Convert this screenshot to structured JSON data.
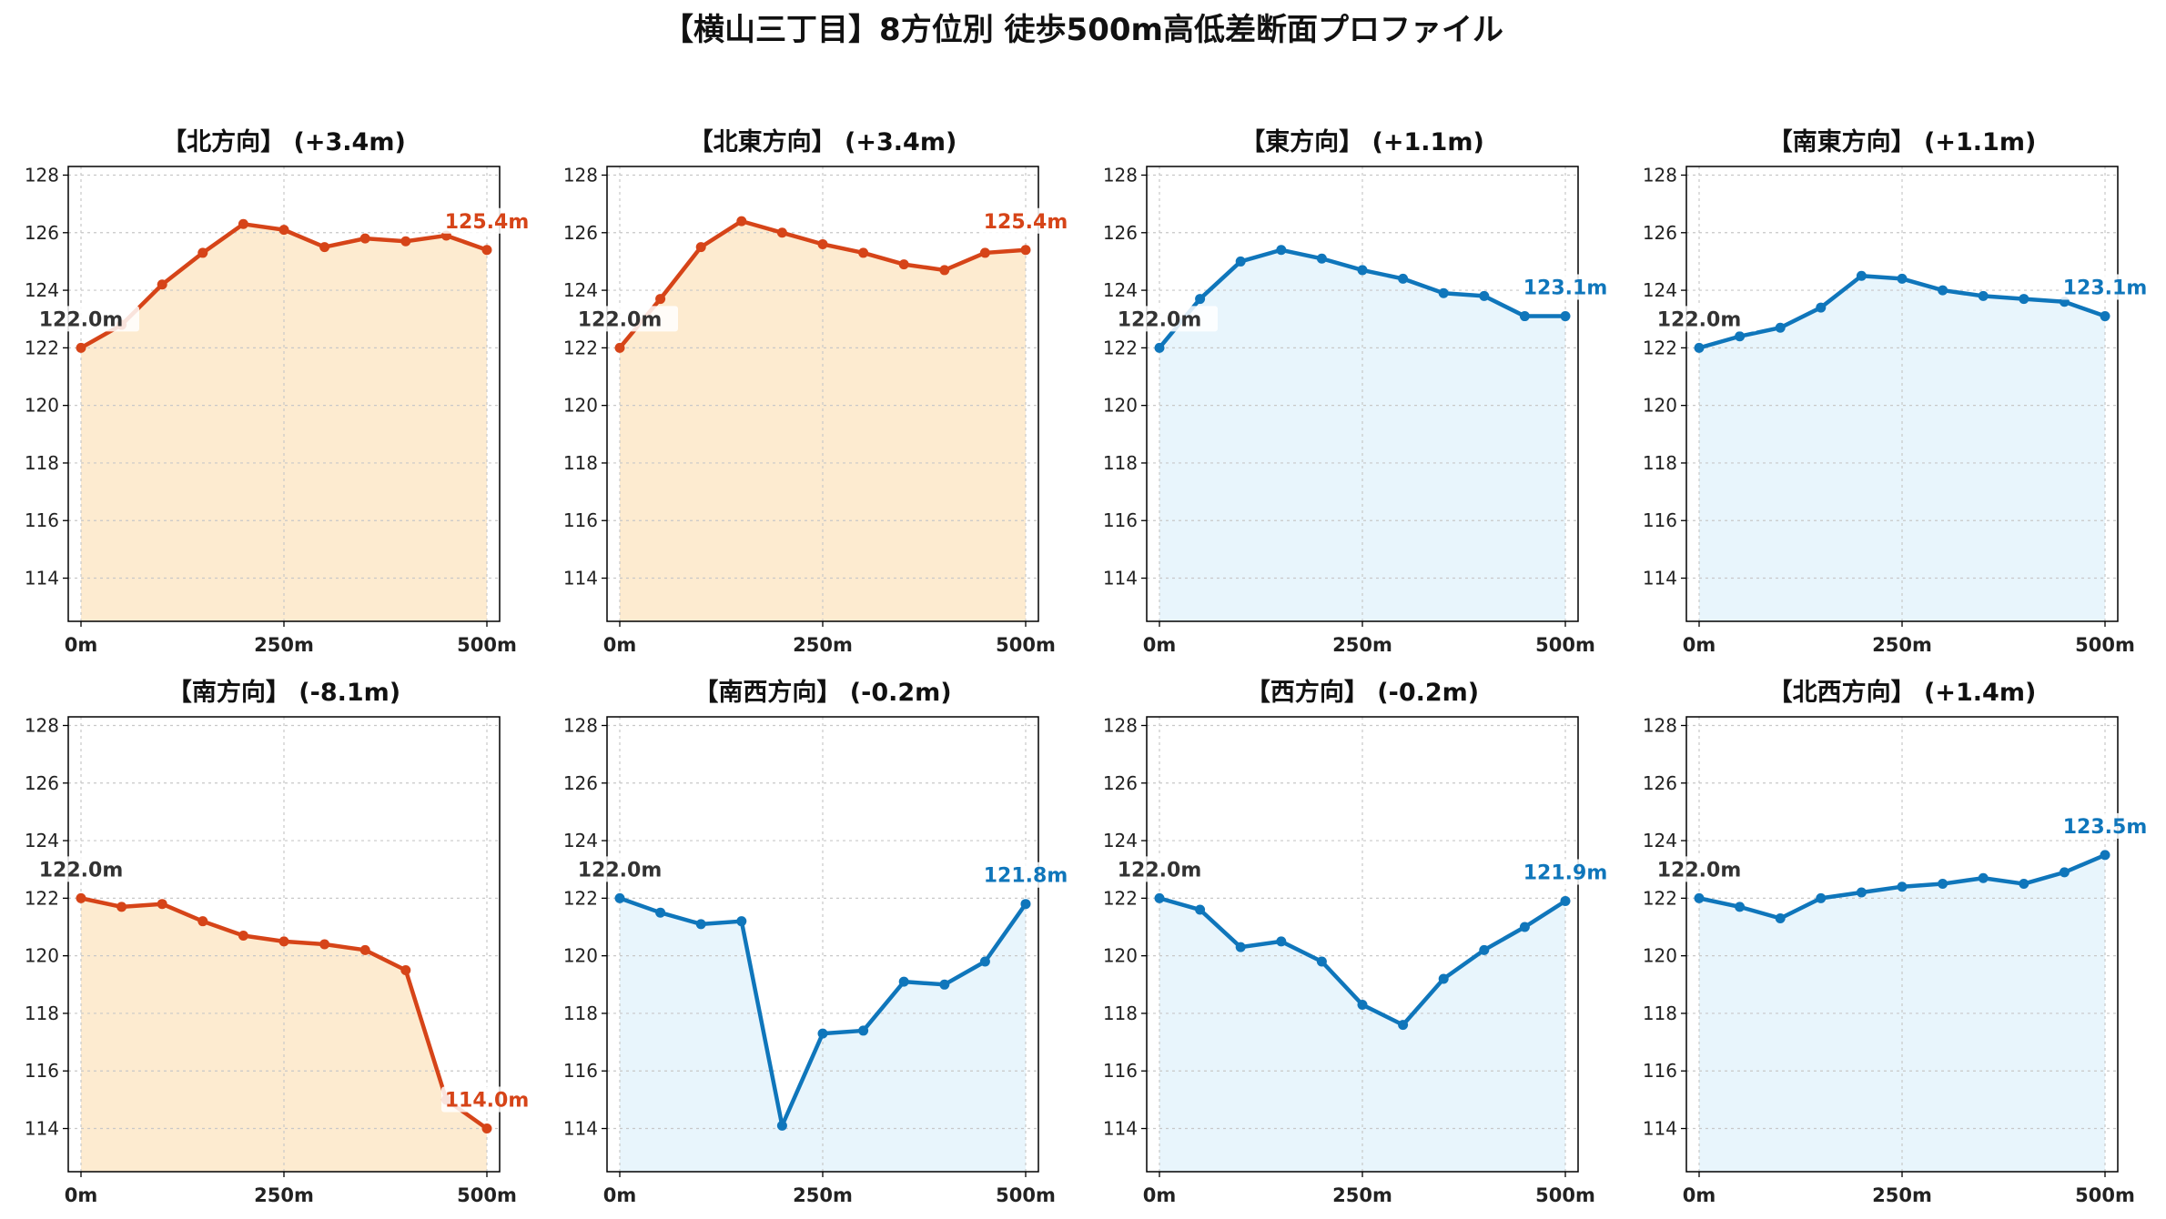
{
  "title": "【横山三丁目】8方位別 徒歩500m高低差断面プロファイル",
  "colors": {
    "up_line": "#d64418",
    "up_fill": "#fdebd0",
    "down_line": "#0f76bb",
    "down_fill": "#e8f5fc"
  },
  "chart_data": [
    {
      "type": "area",
      "title": "【北方向】 (+3.4m)",
      "trend": "up",
      "x": [
        0,
        50,
        100,
        150,
        200,
        250,
        300,
        350,
        400,
        450,
        500
      ],
      "values": [
        122.0,
        122.8,
        124.2,
        125.3,
        126.3,
        126.1,
        125.5,
        125.8,
        125.7,
        125.9,
        125.4
      ],
      "xticks": [
        "0m",
        "250m",
        "500m"
      ],
      "ylim": [
        112.5,
        128.3
      ],
      "yticks": [
        114,
        116,
        118,
        120,
        122,
        124,
        126,
        128
      ],
      "start_label": "122.0m",
      "end_label": "125.4m",
      "grid": true
    },
    {
      "type": "area",
      "title": "【北東方向】 (+3.4m)",
      "trend": "up",
      "x": [
        0,
        50,
        100,
        150,
        200,
        250,
        300,
        350,
        400,
        450,
        500
      ],
      "values": [
        122.0,
        123.7,
        125.5,
        126.4,
        126.0,
        125.6,
        125.3,
        124.9,
        124.7,
        125.3,
        125.4
      ],
      "xticks": [
        "0m",
        "250m",
        "500m"
      ],
      "ylim": [
        112.5,
        128.3
      ],
      "yticks": [
        114,
        116,
        118,
        120,
        122,
        124,
        126,
        128
      ],
      "start_label": "122.0m",
      "end_label": "125.4m",
      "grid": true
    },
    {
      "type": "area",
      "title": "【東方向】 (+1.1m)",
      "trend": "down",
      "x": [
        0,
        50,
        100,
        150,
        200,
        250,
        300,
        350,
        400,
        450,
        500
      ],
      "values": [
        122.0,
        123.7,
        125.0,
        125.4,
        125.1,
        124.7,
        124.4,
        123.9,
        123.8,
        123.1,
        123.1
      ],
      "xticks": [
        "0m",
        "250m",
        "500m"
      ],
      "ylim": [
        112.5,
        128.3
      ],
      "yticks": [
        114,
        116,
        118,
        120,
        122,
        124,
        126,
        128
      ],
      "start_label": "122.0m",
      "end_label": "123.1m",
      "grid": true
    },
    {
      "type": "area",
      "title": "【南東方向】 (+1.1m)",
      "trend": "down",
      "x": [
        0,
        50,
        100,
        150,
        200,
        250,
        300,
        350,
        400,
        450,
        500
      ],
      "values": [
        122.0,
        122.4,
        122.7,
        123.4,
        124.5,
        124.4,
        124.0,
        123.8,
        123.7,
        123.6,
        123.1
      ],
      "xticks": [
        "0m",
        "250m",
        "500m"
      ],
      "ylim": [
        112.5,
        128.3
      ],
      "yticks": [
        114,
        116,
        118,
        120,
        122,
        124,
        126,
        128
      ],
      "start_label": "122.0m",
      "end_label": "123.1m",
      "grid": true
    },
    {
      "type": "area",
      "title": "【南方向】 (-8.1m)",
      "trend": "up",
      "x": [
        0,
        50,
        100,
        150,
        200,
        250,
        300,
        350,
        400,
        450,
        500
      ],
      "values": [
        122.0,
        121.7,
        121.8,
        121.2,
        120.7,
        120.5,
        120.4,
        120.2,
        119.5,
        115.0,
        114.0
      ],
      "xticks": [
        "0m",
        "250m",
        "500m"
      ],
      "ylim": [
        112.5,
        128.3
      ],
      "yticks": [
        114,
        116,
        118,
        120,
        122,
        124,
        126,
        128
      ],
      "start_label": "122.0m",
      "end_label": "114.0m",
      "grid": true
    },
    {
      "type": "area",
      "title": "【南西方向】 (-0.2m)",
      "trend": "down",
      "x": [
        0,
        50,
        100,
        150,
        200,
        250,
        300,
        350,
        400,
        450,
        500
      ],
      "values": [
        122.0,
        121.5,
        121.1,
        121.2,
        114.1,
        117.3,
        117.4,
        119.1,
        119.0,
        119.8,
        121.8
      ],
      "xticks": [
        "0m",
        "250m",
        "500m"
      ],
      "ylim": [
        112.5,
        128.3
      ],
      "yticks": [
        114,
        116,
        118,
        120,
        122,
        124,
        126,
        128
      ],
      "start_label": "122.0m",
      "end_label": "121.8m",
      "grid": true
    },
    {
      "type": "area",
      "title": "【西方向】 (-0.2m)",
      "trend": "down",
      "x": [
        0,
        50,
        100,
        150,
        200,
        250,
        300,
        350,
        400,
        450,
        500
      ],
      "values": [
        122.0,
        121.6,
        120.3,
        120.5,
        119.8,
        118.3,
        117.6,
        119.2,
        120.2,
        121.0,
        121.9
      ],
      "xticks": [
        "0m",
        "250m",
        "500m"
      ],
      "ylim": [
        112.5,
        128.3
      ],
      "yticks": [
        114,
        116,
        118,
        120,
        122,
        124,
        126,
        128
      ],
      "start_label": "122.0m",
      "end_label": "121.9m",
      "grid": true
    },
    {
      "type": "area",
      "title": "【北西方向】 (+1.4m)",
      "trend": "down",
      "x": [
        0,
        50,
        100,
        150,
        200,
        250,
        300,
        350,
        400,
        450,
        500
      ],
      "values": [
        122.0,
        121.7,
        121.3,
        122.0,
        122.2,
        122.4,
        122.5,
        122.7,
        122.5,
        122.9,
        123.5
      ],
      "xticks": [
        "0m",
        "250m",
        "500m"
      ],
      "ylim": [
        112.5,
        128.3
      ],
      "yticks": [
        114,
        116,
        118,
        120,
        122,
        124,
        126,
        128
      ],
      "start_label": "122.0m",
      "end_label": "123.5m",
      "grid": true
    }
  ]
}
